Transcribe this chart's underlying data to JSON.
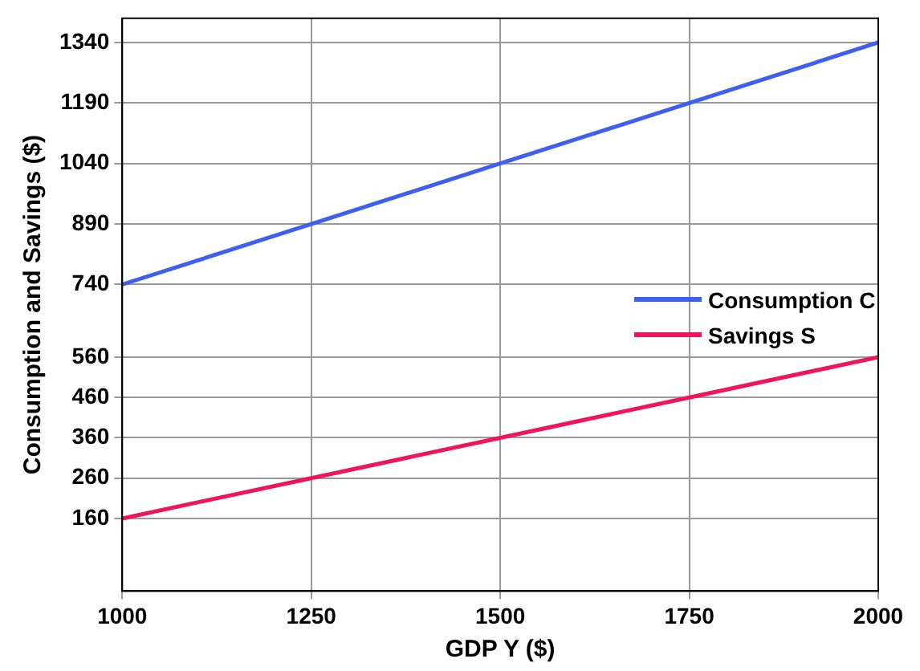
{
  "chart_data": {
    "type": "line",
    "xlabel": "GDP Y ($)",
    "ylabel": "Consumption and Savings ($)",
    "x": [
      1000,
      1250,
      1500,
      1750,
      2000
    ],
    "series": [
      {
        "name": "Consumption C",
        "color": "#3f5fef",
        "values": [
          740,
          890,
          1040,
          1190,
          1340
        ]
      },
      {
        "name": "Savings S",
        "color": "#f0145a",
        "values": [
          160,
          260,
          360,
          460,
          560
        ]
      }
    ],
    "xlim": [
      1000,
      2000
    ],
    "xticks": [
      1000,
      1250,
      1500,
      1750,
      2000
    ],
    "ylim": [
      -20,
      1400
    ],
    "yticks": [
      160,
      260,
      360,
      460,
      560,
      740,
      890,
      1040,
      1190,
      1340
    ],
    "grid": true,
    "legend": "right",
    "marker": "none",
    "line_style": "solid"
  }
}
